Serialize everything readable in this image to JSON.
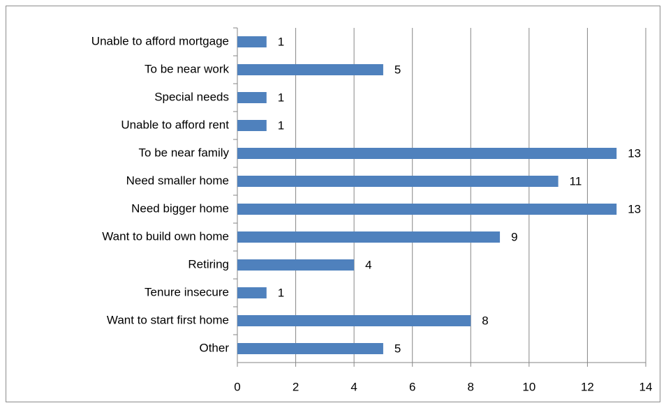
{
  "chart_data": {
    "type": "bar",
    "orientation": "horizontal",
    "categories": [
      "Unable to afford mortgage",
      "To be near work",
      "Special needs",
      "Unable to afford rent",
      "To be near family",
      "Need smaller home",
      "Need bigger home",
      "Want to build own home",
      "Retiring",
      "Tenure insecure",
      "Want to start first home",
      "Other"
    ],
    "values": [
      1,
      5,
      1,
      1,
      13,
      11,
      13,
      9,
      4,
      1,
      8,
      5
    ],
    "color": "#4f81bd",
    "xlim": [
      0,
      14
    ],
    "xticks": [
      0,
      2,
      4,
      6,
      8,
      10,
      12,
      14
    ],
    "grid": true
  }
}
